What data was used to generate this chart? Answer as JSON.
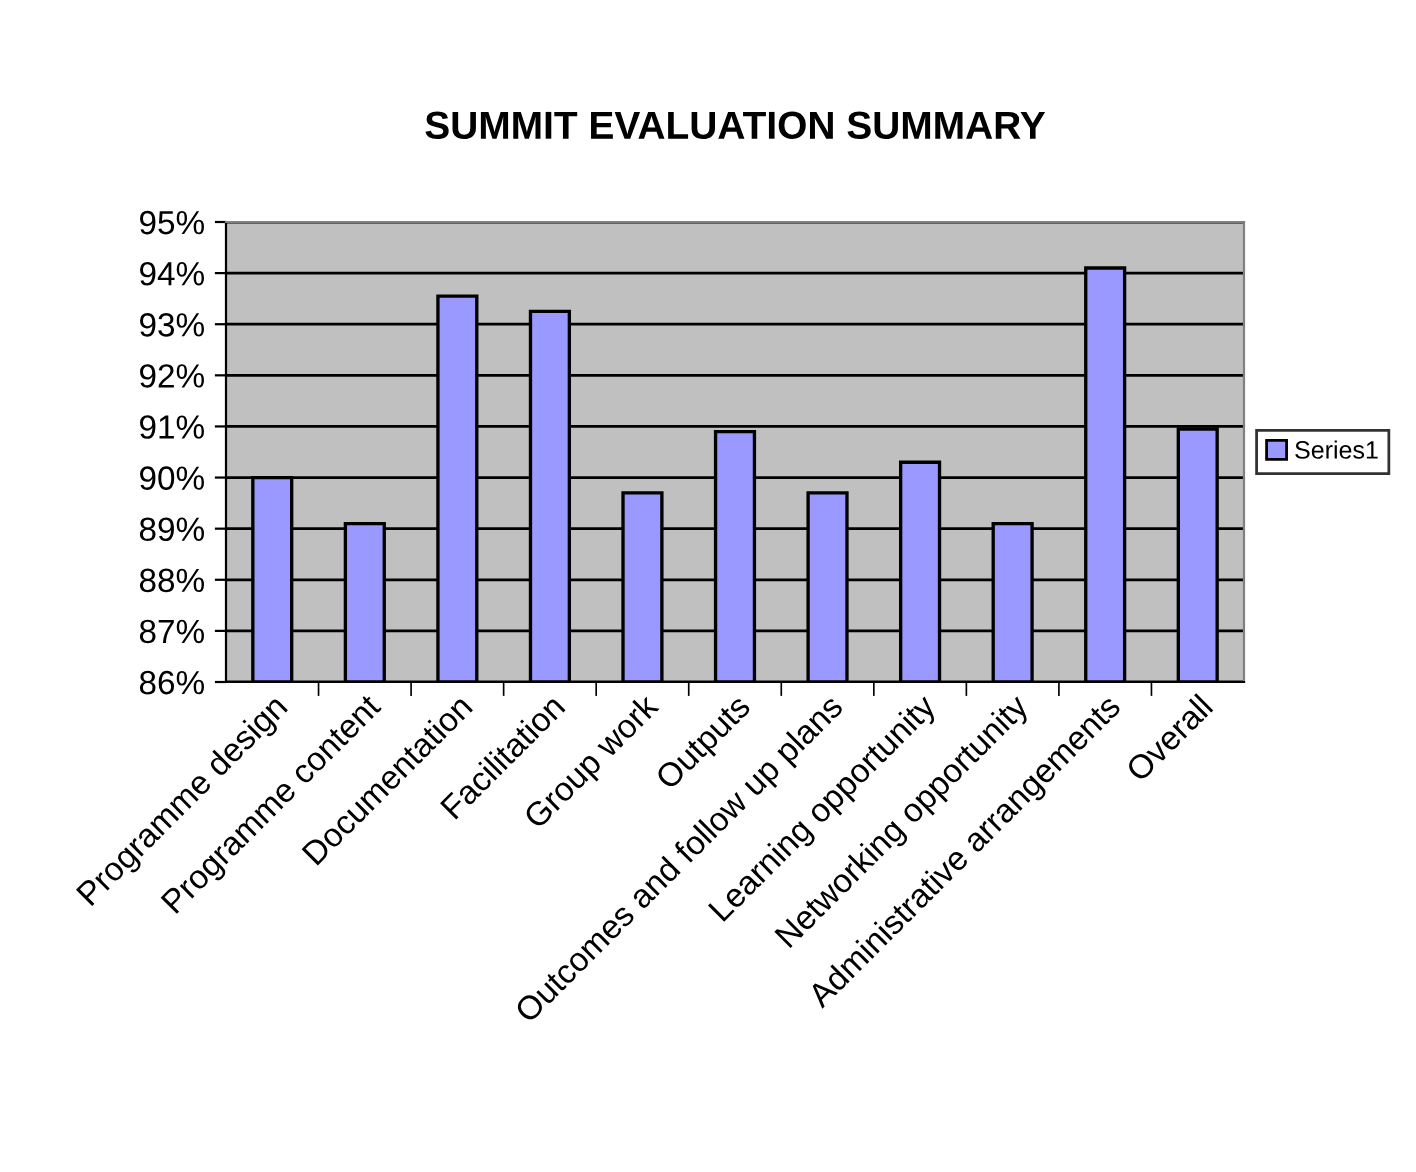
{
  "chart_data": {
    "type": "bar",
    "title": "SUMMIT EVALUATION SUMMARY",
    "categories": [
      "Programme design",
      "Programme content",
      "Documentation",
      "Facilitation",
      "Group work",
      "Outputs",
      "Outcomes and follow up plans",
      "Learning opportunity",
      "Networking opportunity",
      "Administrative arrangements",
      "Overall"
    ],
    "series": [
      {
        "name": "Series1",
        "color": "#9999ff",
        "values": [
          90.0,
          89.1,
          93.55,
          93.25,
          89.7,
          90.9,
          89.7,
          90.3,
          89.1,
          94.1,
          90.95
        ]
      }
    ],
    "ylim": [
      86,
      95
    ],
    "yticks": [
      {
        "value": 86,
        "label": "86%"
      },
      {
        "value": 87,
        "label": "87%"
      },
      {
        "value": 88,
        "label": "88%"
      },
      {
        "value": 89,
        "label": "89%"
      },
      {
        "value": 90,
        "label": "90%"
      },
      {
        "value": 91,
        "label": "91%"
      },
      {
        "value": 92,
        "label": "92%"
      },
      {
        "value": 93,
        "label": "93%"
      },
      {
        "value": 94,
        "label": "94%"
      },
      {
        "value": 95,
        "label": "95%"
      }
    ],
    "grid": "y",
    "legend": "right"
  }
}
